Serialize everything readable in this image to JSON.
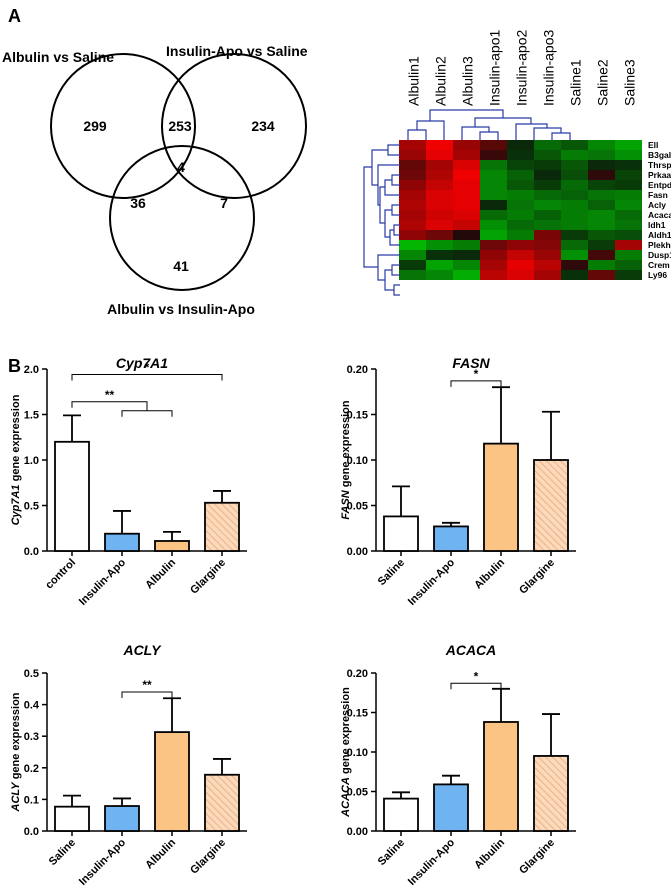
{
  "panel_a": {
    "label": "A",
    "venn": {
      "set_labels": [
        "Albulin vs Saline",
        "Insulin-Apo vs Saline",
        "Albulin vs Insulin-Apo"
      ],
      "regions": {
        "a_only": "299",
        "b_only": "234",
        "c_only": "41",
        "ab": "253",
        "ac": "36",
        "bc": "7",
        "abc": "4"
      }
    },
    "heatmap": {
      "columns": [
        "Albulin1",
        "Albulin2",
        "Albulin3",
        "Insulin-apo1",
        "Insulin-apo2",
        "Insulin-apo3",
        "Saline1",
        "Saline2",
        "Saline3"
      ],
      "rows": [
        "Ell",
        "B3galt1",
        "Thrsp",
        "Prkaa2",
        "Entpd5",
        "Fasn",
        "Acly",
        "Acaca",
        "Idh1",
        "Aldh1l1",
        "Plekha8",
        "Dusp1",
        "Crem",
        "Ly96"
      ],
      "values": [
        [
          0.6,
          0.95,
          0.55,
          0.25,
          -0.05,
          -0.4,
          -0.3,
          -0.55,
          -0.7
        ],
        [
          0.55,
          0.9,
          0.6,
          0.1,
          -0.1,
          -0.3,
          -0.5,
          -0.45,
          -0.6
        ],
        [
          0.3,
          0.6,
          0.85,
          -0.45,
          -0.2,
          -0.15,
          -0.3,
          -0.05,
          -0.1
        ],
        [
          0.35,
          0.65,
          0.95,
          -0.55,
          -0.35,
          -0.05,
          -0.25,
          0.05,
          -0.2
        ],
        [
          0.5,
          0.75,
          0.9,
          -0.55,
          -0.3,
          -0.15,
          -0.4,
          -0.2,
          -0.15
        ],
        [
          0.6,
          0.85,
          0.9,
          -0.55,
          -0.5,
          -0.4,
          -0.35,
          -0.45,
          -0.5
        ],
        [
          0.65,
          0.85,
          0.9,
          -0.05,
          -0.45,
          -0.55,
          -0.5,
          -0.35,
          -0.55
        ],
        [
          0.6,
          0.8,
          0.85,
          -0.4,
          -0.5,
          -0.35,
          -0.5,
          -0.55,
          -0.4
        ],
        [
          0.65,
          0.85,
          0.75,
          -0.6,
          -0.4,
          -0.45,
          -0.5,
          -0.55,
          -0.45
        ],
        [
          0.5,
          0.35,
          0.0,
          -0.7,
          -0.5,
          0.4,
          -0.15,
          -0.3,
          -0.25
        ],
        [
          -0.8,
          -0.6,
          -0.5,
          0.35,
          0.5,
          0.45,
          -0.4,
          -0.15,
          0.6
        ],
        [
          -0.55,
          -0.1,
          -0.05,
          0.5,
          0.75,
          0.55,
          -0.6,
          0.15,
          -0.5
        ],
        [
          -0.15,
          -0.7,
          -0.55,
          0.6,
          0.9,
          0.7,
          0.05,
          -0.5,
          -0.35
        ],
        [
          -0.45,
          -0.55,
          -0.75,
          0.7,
          0.85,
          0.6,
          -0.1,
          0.3,
          -0.15
        ]
      ]
    }
  },
  "panel_b": {
    "label": "B"
  },
  "colors": {
    "white": "#ffffff",
    "blue": "#6fb4f0",
    "orange": "#fbc484",
    "hatch": "#f3c7a3",
    "heat_red": "#ff1a1a",
    "heat_green": "#1ac01a",
    "dendro": "#2a3aa8"
  },
  "chart_data": [
    {
      "type": "bar",
      "title": "Cyp7A1",
      "ylabel_italic": "Cyp7A1",
      "ylabel_rest": " gene expression",
      "categories": [
        "control",
        "Insulin-Apo",
        "Albulin",
        "Glargine"
      ],
      "styles": [
        "white",
        "blue",
        "orange",
        "hatch"
      ],
      "values": [
        1.2,
        0.19,
        0.11,
        0.53
      ],
      "errors": [
        0.29,
        0.25,
        0.1,
        0.13
      ],
      "ylim": [
        0,
        2.0
      ],
      "yticks": [
        "0.0",
        "0.5",
        "1.0",
        "1.5",
        "2.0"
      ],
      "ytick_values": [
        0,
        0.5,
        1.0,
        1.5,
        2.0
      ],
      "significance": [
        {
          "type": "bracket",
          "from": 0,
          "to": 3,
          "level": 1.94,
          "label": "*"
        },
        {
          "type": "forked",
          "from": 0,
          "to": [
            1,
            2
          ],
          "level": 1.64,
          "label": "**"
        }
      ]
    },
    {
      "type": "bar",
      "title": "FASN",
      "ylabel_italic": "FASN",
      "ylabel_rest": " gene expression",
      "categories": [
        "Saline",
        "Insulin-Apo",
        "Albulin",
        "Glargine"
      ],
      "styles": [
        "white",
        "blue",
        "orange",
        "hatch"
      ],
      "values": [
        0.038,
        0.027,
        0.118,
        0.1
      ],
      "errors": [
        0.033,
        0.004,
        0.062,
        0.053
      ],
      "ylim": [
        0,
        0.2
      ],
      "yticks": [
        "0.00",
        "0.05",
        "0.10",
        "0.15",
        "0.20"
      ],
      "ytick_values": [
        0,
        0.05,
        0.1,
        0.15,
        0.2
      ],
      "significance": [
        {
          "type": "bracket",
          "from": 1,
          "to": 2,
          "level": 0.187,
          "label": "*"
        }
      ]
    },
    {
      "type": "bar",
      "title": "ACLY",
      "ylabel_italic": "ACLY",
      "ylabel_rest": " gene expression",
      "categories": [
        "Saline",
        "Insulin-Apo",
        "Albulin",
        "Glargine"
      ],
      "styles": [
        "white",
        "blue",
        "orange",
        "hatch"
      ],
      "values": [
        0.077,
        0.079,
        0.313,
        0.178
      ],
      "errors": [
        0.035,
        0.024,
        0.107,
        0.05
      ],
      "ylim": [
        0,
        0.5
      ],
      "yticks": [
        "0.0",
        "0.1",
        "0.2",
        "0.3",
        "0.4",
        "0.5"
      ],
      "ytick_values": [
        0,
        0.1,
        0.2,
        0.3,
        0.4,
        0.5
      ],
      "significance": [
        {
          "type": "bracket",
          "from": 1,
          "to": 2,
          "level": 0.44,
          "label": "**"
        }
      ]
    },
    {
      "type": "bar",
      "title": "ACACA",
      "ylabel_italic": "ACACA",
      "ylabel_rest": " gene expression",
      "categories": [
        "Saline",
        "Insulin-Apo",
        "Albulin",
        "Glargine"
      ],
      "styles": [
        "white",
        "blue",
        "orange",
        "hatch"
      ],
      "values": [
        0.041,
        0.059,
        0.138,
        0.095
      ],
      "errors": [
        0.008,
        0.011,
        0.042,
        0.053
      ],
      "ylim": [
        0,
        0.2
      ],
      "yticks": [
        "0.00",
        "0.05",
        "0.10",
        "0.15",
        "0.20"
      ],
      "ytick_values": [
        0,
        0.05,
        0.1,
        0.15,
        0.2
      ],
      "significance": [
        {
          "type": "bracket",
          "from": 1,
          "to": 2,
          "level": 0.187,
          "label": "*"
        }
      ]
    }
  ]
}
